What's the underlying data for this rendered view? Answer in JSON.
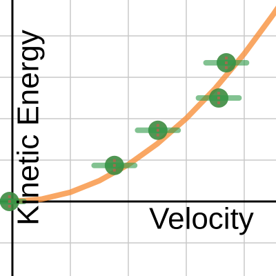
{
  "chart_data": {
    "type": "scatter",
    "xlabel": "Velocity",
    "ylabel": "Kinetic Energy",
    "xlim": [
      -0.214,
      4.548
    ],
    "ylim": [
      -1.8,
      4.867
    ],
    "xticks": [
      0,
      1,
      2,
      3,
      4
    ],
    "yticks": [
      -1,
      0,
      1,
      2,
      3,
      4
    ],
    "grid": true,
    "points": {
      "color": "#3d8b40",
      "error_color": "#2e9a48",
      "yerr_color": "#d9534f",
      "x": [
        -0.05,
        1.76,
        2.51,
        3.56,
        3.69
      ],
      "y": [
        0,
        0.87,
        1.72,
        2.5,
        3.35
      ],
      "xerr": [
        0.25,
        0.35,
        0.35,
        0.35,
        0.35
      ],
      "yerr": [
        0.15,
        0.15,
        0.15,
        0.15,
        0.15
      ]
    },
    "curve": {
      "color": "#f7913d",
      "x": [
        0,
        0.5,
        1,
        1.5,
        2,
        2.5,
        3,
        3.5,
        4,
        4.5,
        4.6
      ],
      "y": [
        0,
        0.056,
        0.223,
        0.502,
        0.892,
        1.394,
        2.007,
        2.732,
        3.568,
        4.516,
        4.719
      ]
    }
  }
}
